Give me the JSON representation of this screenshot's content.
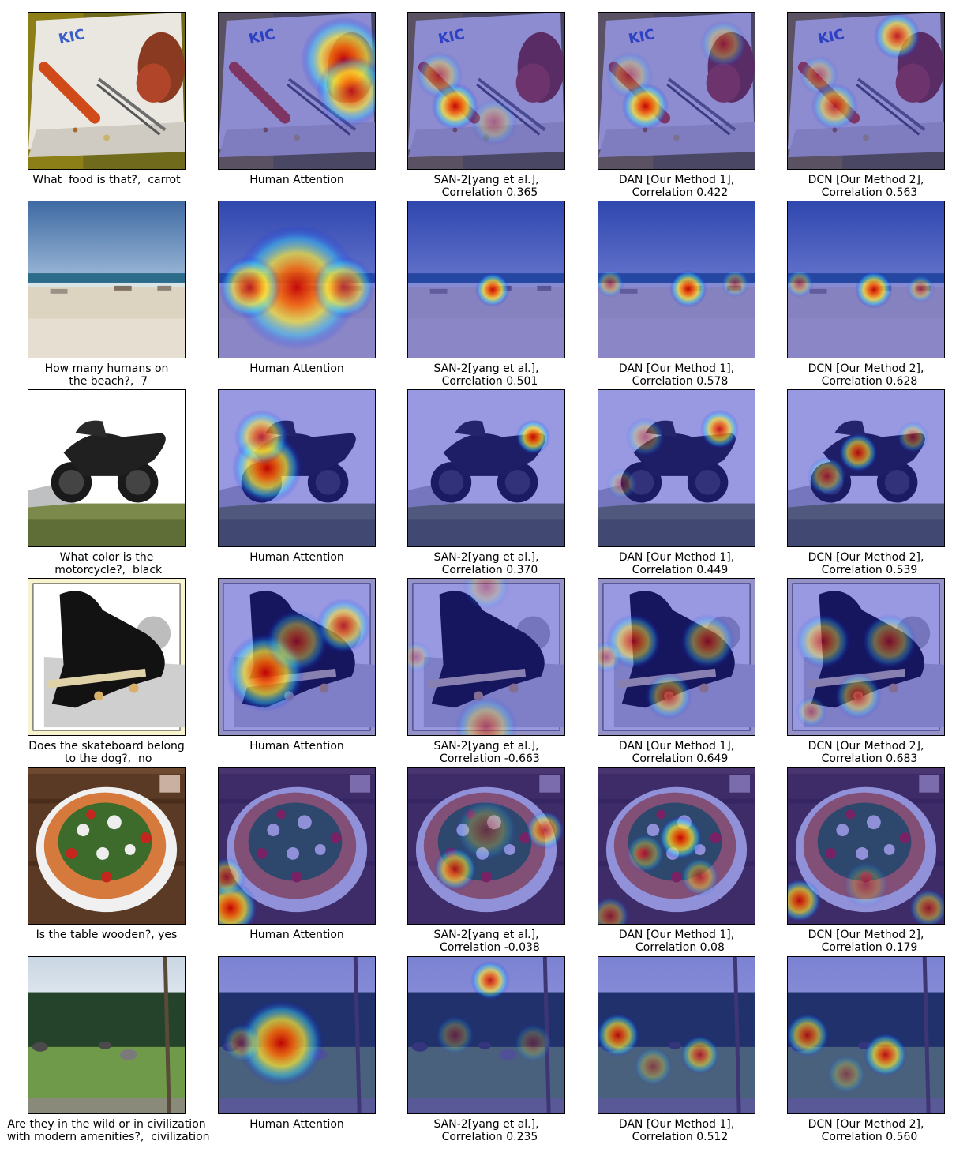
{
  "rows": [
    {
      "scene": "food",
      "question": "What  food is that?,  carrot",
      "human": "Human Attention",
      "san": "SAN-2[yang et al.],\n  Correlation 0.365",
      "dan": "DAN [Our Method 1],\n  Correlation 0.422",
      "dcn": "DCN [Our Method 2],\n  Correlation 0.563"
    },
    {
      "scene": "beach",
      "question": "How many humans on\n the beach?,  7",
      "human": "Human Attention",
      "san": "SAN-2[yang et al.],\n  Correlation 0.501",
      "dan": "DAN [Our Method 1],\n  Correlation 0.578",
      "dcn": "DCN [Our Method 2],\n  Correlation 0.628"
    },
    {
      "scene": "motorcycle",
      "question": "What color is the\n motorcycle?,  black",
      "human": "Human Attention",
      "san": "SAN-2[yang et al.],\n  Correlation 0.370",
      "dan": "DAN [Our Method 1],\n  Correlation 0.449",
      "dcn": "DCN [Our Method 2],\n  Correlation 0.539"
    },
    {
      "scene": "dog",
      "question": "Does the skateboard belong\n to the dog?,  no",
      "human": "Human Attention",
      "san": "SAN-2[yang et al.],\n  Correlation -0.663",
      "dan": "DAN [Our Method 1],\n  Correlation 0.649",
      "dcn": "DCN [Our Method 2],\n  Correlation 0.683"
    },
    {
      "scene": "pizza",
      "question": "Is the table wooden?, yes",
      "human": "Human Attention",
      "san": "SAN-2[yang et al.],\n  Correlation -0.038",
      "dan": "DAN [Our Method 1],\n  Correlation 0.08",
      "dcn": "DCN [Our Method 2],\n  Correlation 0.179"
    },
    {
      "scene": "field",
      "question": "Are they in the wild or in civilization\n with modern amenities?,  civilization",
      "human": "Human Attention",
      "san": "SAN-2[yang et al.],\n  Correlation 0.235",
      "dan": "DAN [Our Method 1],\n  Correlation 0.512",
      "dcn": "DCN [Our Method 2],\n  Correlation 0.560"
    }
  ]
}
